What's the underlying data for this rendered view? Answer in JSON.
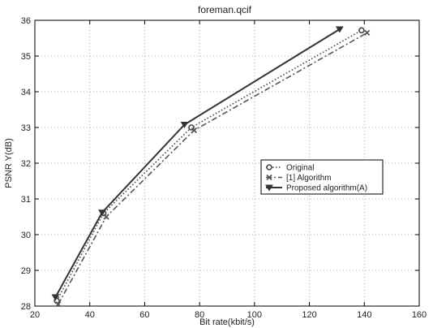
{
  "chart_data": {
    "type": "line",
    "title": "foreman.qcif",
    "xlabel": "Bit rate(kbit/s)",
    "ylabel": "PSNR Y(dB)",
    "xlim": [
      20,
      160
    ],
    "ylim": [
      28,
      36
    ],
    "x_ticks": [
      20,
      40,
      60,
      80,
      100,
      120,
      140,
      160
    ],
    "y_ticks": [
      28,
      29,
      30,
      31,
      32,
      33,
      34,
      35,
      36
    ],
    "grid": true,
    "legend_position": "center-right",
    "series": [
      {
        "name": "Original",
        "marker": "circle",
        "line_style": "dotted",
        "color": "#444444",
        "x": [
          28,
          45,
          77,
          139
        ],
        "y": [
          28.15,
          30.6,
          33.0,
          35.72
        ]
      },
      {
        "name": "[1] Algorithm",
        "marker": "x",
        "line_style": "dashdot",
        "color": "#555555",
        "x": [
          28.5,
          46,
          78,
          141
        ],
        "y": [
          28.05,
          30.5,
          32.92,
          35.65
        ]
      },
      {
        "name": "Proposed algorithm(A)",
        "marker": "triangle-down",
        "line_style": "solid",
        "color": "#333333",
        "x": [
          27.5,
          44.5,
          74.5,
          131
        ],
        "y": [
          28.25,
          30.62,
          33.08,
          35.75
        ]
      }
    ]
  }
}
